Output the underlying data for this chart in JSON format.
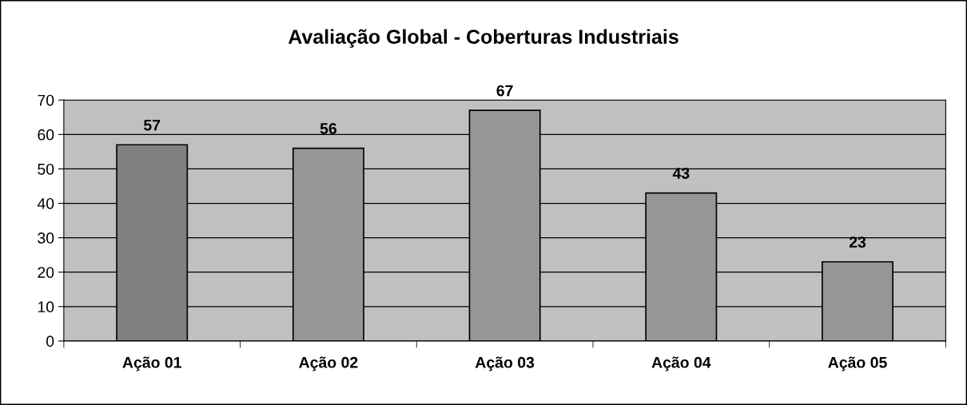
{
  "chart_data": {
    "type": "bar",
    "title": "Avaliação Global - Coberturas Industriais",
    "categories": [
      "Ação 01",
      "Ação 02",
      "Ação 03",
      "Ação 04",
      "Ação 05"
    ],
    "values": [
      57,
      56,
      67,
      43,
      23
    ],
    "colors": [
      "#808080",
      "#969696",
      "#969696",
      "#969696",
      "#969696"
    ],
    "ylim": [
      0,
      70
    ],
    "yticks": [
      0,
      10,
      20,
      30,
      40,
      50,
      60,
      70
    ],
    "grid": "y",
    "data_labels": true,
    "legend": false
  }
}
